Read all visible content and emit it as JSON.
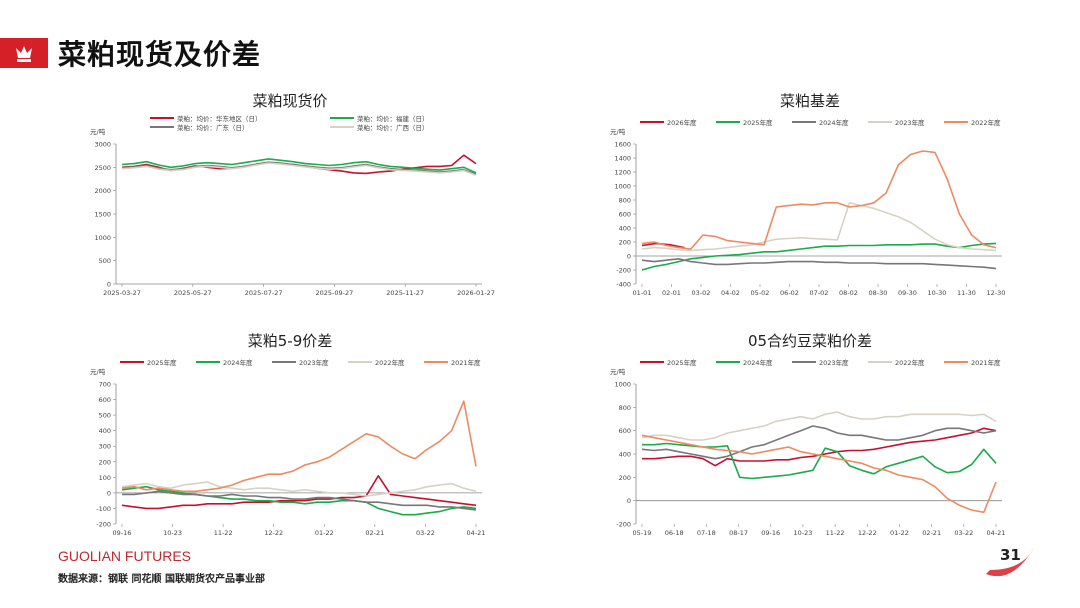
{
  "page": {
    "title": "菜粕现货及价差",
    "brand_name": "GUOLIAN FUTURES",
    "source": "数据来源：钢联  同花顺  国联期货农产品事业部",
    "page_number": "31"
  },
  "colors": {
    "red": "#c8102e",
    "green": "#1aab4a",
    "gray": "#777777",
    "beige": "#d6d3c4",
    "orange": "#ee8a62"
  },
  "chart_data": [
    {
      "id": "spot",
      "type": "line",
      "title": "菜粕现货价",
      "yunit": "元/吨",
      "ylim": [
        0,
        3000
      ],
      "yticks": [
        0,
        500,
        1000,
        1500,
        2000,
        2500,
        3000
      ],
      "xticks": [
        "2025-03-27",
        "2025-05-27",
        "2025-07-27",
        "2025-09-27",
        "2025-11-27",
        "2026-01-27"
      ],
      "series": [
        {
          "name": "菜粕：均价：华东地区（日）",
          "color": "#c8102e",
          "values": [
            2500,
            2520,
            2560,
            2500,
            2430,
            2480,
            2530,
            2500,
            2470,
            2480,
            2520,
            2560,
            2600,
            2580,
            2560,
            2520,
            2480,
            2450,
            2420,
            2380,
            2370,
            2400,
            2420,
            2460,
            2490,
            2520,
            2520,
            2540,
            2760,
            2580
          ]
        },
        {
          "name": "菜粕：均价：福建（日）",
          "color": "#1aab4a",
          "values": [
            2560,
            2580,
            2620,
            2550,
            2500,
            2530,
            2580,
            2600,
            2580,
            2560,
            2600,
            2640,
            2680,
            2650,
            2620,
            2580,
            2560,
            2540,
            2560,
            2600,
            2620,
            2560,
            2520,
            2500,
            2480,
            2460,
            2440,
            2470,
            2500,
            2380
          ]
        },
        {
          "name": "菜粕：均价：广东（日）",
          "color": "#777777",
          "values": [
            2490,
            2510,
            2540,
            2480,
            2450,
            2470,
            2520,
            2540,
            2520,
            2490,
            2520,
            2570,
            2610,
            2590,
            2560,
            2530,
            2500,
            2480,
            2490,
            2530,
            2560,
            2510,
            2470,
            2450,
            2440,
            2420,
            2400,
            2420,
            2450,
            2350
          ]
        },
        {
          "name": "菜粕：均价：广西（日）",
          "color": "#d6d3c4",
          "values": [
            2470,
            2490,
            2520,
            2460,
            2430,
            2450,
            2500,
            2520,
            2500,
            2470,
            2500,
            2550,
            2590,
            2570,
            2540,
            2510,
            2480,
            2460,
            2470,
            2510,
            2540,
            2490,
            2450,
            2430,
            2420,
            2400,
            2380,
            2400,
            2430,
            2330
          ]
        }
      ]
    },
    {
      "id": "basis",
      "type": "line",
      "title": "菜粕基差",
      "yunit": "元/吨",
      "ylim": [
        -400,
        1600
      ],
      "yticks": [
        -400,
        -200,
        0,
        200,
        400,
        600,
        800,
        1000,
        1200,
        1400,
        1600
      ],
      "xticks": [
        "01-01",
        "02-01",
        "03-02",
        "04-02",
        "05-02",
        "06-02",
        "07-02",
        "08-02",
        "08-30",
        "09-30",
        "10-30",
        "11-30",
        "12-30"
      ],
      "series": [
        {
          "name": "2026年度",
          "color": "#c8102e",
          "values": [
            150,
            180,
            160,
            120
          ]
        },
        {
          "name": "2025年度",
          "color": "#1aab4a",
          "values": [
            -200,
            -150,
            -120,
            -80,
            -40,
            -20,
            0,
            10,
            20,
            40,
            60,
            60,
            80,
            100,
            120,
            140,
            140,
            150,
            150,
            150,
            160,
            160,
            160,
            170,
            170,
            140,
            120,
            150,
            170,
            180
          ]
        },
        {
          "name": "2024年度",
          "color": "#777777",
          "values": [
            -60,
            -80,
            -60,
            -40,
            -80,
            -100,
            -120,
            -120,
            -110,
            -100,
            -100,
            -90,
            -80,
            -80,
            -80,
            -90,
            -90,
            -100,
            -100,
            -100,
            -110,
            -110,
            -110,
            -110,
            -120,
            -130,
            -140,
            -150,
            -160,
            -180
          ]
        },
        {
          "name": "2023年度",
          "color": "#d6d3c4",
          "values": [
            100,
            120,
            110,
            90,
            80,
            90,
            100,
            120,
            140,
            160,
            200,
            240,
            250,
            260,
            250,
            240,
            230,
            760,
            720,
            680,
            620,
            560,
            480,
            360,
            240,
            160,
            120,
            100,
            90,
            80
          ]
        },
        {
          "name": "2022年度",
          "color": "#ee8a62",
          "values": [
            180,
            200,
            150,
            120,
            100,
            300,
            280,
            220,
            200,
            180,
            160,
            700,
            720,
            740,
            730,
            760,
            760,
            700,
            720,
            760,
            900,
            1300,
            1450,
            1500,
            1480,
            1100,
            600,
            300,
            160,
            120
          ]
        }
      ]
    },
    {
      "id": "spread59",
      "type": "line",
      "title": "菜粕5-9价差",
      "yunit": "元/吨",
      "ylim": [
        -200,
        700
      ],
      "yticks": [
        -200,
        -100,
        0,
        100,
        200,
        300,
        400,
        500,
        600,
        700
      ],
      "xticks": [
        "09-16",
        "10-23",
        "11-22",
        "12-22",
        "01-22",
        "02-21",
        "03-22",
        "04-21"
      ],
      "series": [
        {
          "name": "2025年度",
          "color": "#c8102e",
          "values": [
            -80,
            -90,
            -100,
            -100,
            -90,
            -80,
            -80,
            -70,
            -70,
            -70,
            -60,
            -60,
            -60,
            -50,
            -50,
            -50,
            -40,
            -40,
            -30,
            -30,
            -20,
            110,
            -10,
            -20,
            -30,
            -40,
            -50,
            -60,
            -70,
            -80
          ]
        },
        {
          "name": "2024年度",
          "color": "#1aab4a",
          "values": [
            20,
            30,
            40,
            20,
            10,
            0,
            -10,
            -20,
            -30,
            -40,
            -40,
            -50,
            -50,
            -60,
            -60,
            -70,
            -60,
            -60,
            -50,
            -50,
            -60,
            -100,
            -120,
            -140,
            -140,
            -130,
            -120,
            -100,
            -90,
            -100
          ]
        },
        {
          "name": "2023年度",
          "color": "#777777",
          "values": [
            -10,
            -10,
            0,
            10,
            0,
            -10,
            -10,
            -20,
            -20,
            -10,
            -20,
            -20,
            -30,
            -30,
            -40,
            -40,
            -30,
            -30,
            -40,
            -50,
            -60,
            -60,
            -70,
            -80,
            -80,
            -80,
            -90,
            -90,
            -100,
            -110
          ]
        },
        {
          "name": "2022年度",
          "color": "#d6d3c4",
          "values": [
            40,
            50,
            60,
            40,
            30,
            50,
            60,
            70,
            40,
            30,
            20,
            30,
            30,
            20,
            10,
            20,
            10,
            0,
            0,
            -10,
            -20,
            -10,
            0,
            10,
            20,
            40,
            50,
            60,
            30,
            10
          ]
        },
        {
          "name": "2021年度",
          "color": "#ee8a62",
          "values": [
            30,
            40,
            20,
            30,
            20,
            10,
            10,
            20,
            30,
            50,
            80,
            100,
            120,
            120,
            140,
            180,
            200,
            230,
            280,
            330,
            380,
            360,
            300,
            250,
            220,
            280,
            330,
            400,
            590,
            170
          ]
        }
      ]
    },
    {
      "id": "soy05",
      "type": "line",
      "title": "05合约豆菜粕价差",
      "yunit": "元/吨",
      "ylim": [
        -200,
        1000
      ],
      "yticks": [
        -200,
        0,
        200,
        400,
        600,
        800,
        1000
      ],
      "xticks": [
        "05-19",
        "06-18",
        "07-18",
        "08-17",
        "09-16",
        "10-23",
        "11-22",
        "12-22",
        "01-22",
        "02-21",
        "03-22",
        "04-21"
      ],
      "series": [
        {
          "name": "2025年度",
          "color": "#c8102e",
          "values": [
            360,
            360,
            370,
            380,
            380,
            360,
            300,
            360,
            340,
            340,
            340,
            350,
            350,
            370,
            380,
            400,
            420,
            430,
            430,
            440,
            460,
            480,
            500,
            510,
            520,
            540,
            560,
            580,
            620,
            600
          ]
        },
        {
          "name": "2024年度",
          "color": "#1aab4a",
          "values": [
            480,
            480,
            490,
            480,
            470,
            460,
            460,
            470,
            200,
            190,
            200,
            210,
            220,
            240,
            260,
            450,
            420,
            300,
            260,
            230,
            290,
            320,
            350,
            380,
            290,
            240,
            250,
            310,
            440,
            320
          ]
        },
        {
          "name": "2023年度",
          "color": "#777777",
          "values": [
            440,
            430,
            440,
            420,
            400,
            380,
            360,
            380,
            420,
            460,
            480,
            520,
            560,
            600,
            640,
            620,
            580,
            560,
            560,
            540,
            520,
            520,
            540,
            560,
            600,
            620,
            620,
            600,
            580,
            600
          ]
        },
        {
          "name": "2022年度",
          "color": "#d6d3c4",
          "values": [
            540,
            560,
            560,
            540,
            520,
            520,
            540,
            580,
            600,
            620,
            640,
            680,
            700,
            720,
            700,
            740,
            760,
            720,
            700,
            700,
            720,
            720,
            740,
            740,
            740,
            740,
            740,
            730,
            740,
            680
          ]
        },
        {
          "name": "2021年度",
          "color": "#ee8a62",
          "values": [
            560,
            540,
            520,
            500,
            480,
            460,
            440,
            430,
            420,
            400,
            420,
            440,
            460,
            420,
            400,
            380,
            360,
            340,
            320,
            280,
            260,
            220,
            200,
            180,
            120,
            20,
            -40,
            -80,
            -100,
            160
          ]
        }
      ]
    }
  ]
}
